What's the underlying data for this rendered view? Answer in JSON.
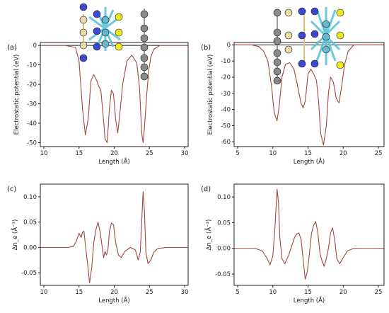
{
  "chart_data": [
    {
      "panel": "(a)",
      "type": "line",
      "xlabel": "Length (Å)",
      "ylabel": "Electrostatic potential (eV)",
      "xlim": [
        9.5,
        30.5
      ],
      "ylim": [
        -52,
        1.5
      ],
      "xticks": [
        10,
        15,
        20,
        25,
        30
      ],
      "yticks": [
        0,
        -10,
        -20,
        -30,
        -40,
        -50
      ],
      "reference_line": 0,
      "series": [
        {
          "x": [
            9.5,
            13.0,
            14.5,
            15.0,
            15.5,
            15.9,
            16.3,
            16.7,
            17.1,
            17.5,
            17.8,
            18.1,
            18.4,
            18.7,
            19.0,
            19.3,
            19.6,
            19.9,
            20.2,
            20.5,
            20.8,
            21.2,
            21.8,
            22.5,
            23.2,
            23.6,
            23.9,
            24.1,
            24.3,
            24.6,
            24.9,
            25.2,
            25.6,
            26.5,
            29.0,
            30.5
          ],
          "y": [
            0,
            0,
            -1,
            -8,
            -33,
            -46,
            -38,
            -18,
            -15,
            -18,
            -21,
            -23,
            -35,
            -48,
            -50,
            -33,
            -23,
            -25,
            -38,
            -45,
            -35,
            -20,
            -8,
            -5,
            -9,
            -22,
            -45,
            -50,
            -42,
            -26,
            -13,
            -6,
            -2,
            0,
            0,
            0
          ]
        }
      ],
      "line_color": "#a0473f",
      "grid": false
    },
    {
      "panel": "(b)",
      "type": "line",
      "xlabel": "Length (Å)",
      "ylabel": "Electrostatic potential (eV)",
      "xlim": [
        4.5,
        25.8
      ],
      "ylim": [
        -63,
        1.5
      ],
      "xticks": [
        5,
        10,
        15,
        20,
        25
      ],
      "yticks": [
        0,
        -10,
        -20,
        -30,
        -40,
        -50,
        -60
      ],
      "reference_line": 0,
      "series": [
        {
          "x": [
            4.5,
            7.0,
            8.0,
            8.7,
            9.3,
            9.8,
            10.2,
            10.6,
            10.9,
            11.3,
            11.8,
            12.4,
            13.0,
            13.5,
            14.0,
            14.3,
            14.6,
            15.0,
            15.4,
            15.8,
            16.2,
            16.5,
            16.8,
            17.2,
            17.6,
            17.9,
            18.2,
            18.6,
            19.0,
            19.4,
            19.8,
            20.2,
            20.7,
            21.5,
            23.5,
            25.8
          ],
          "y": [
            0,
            0,
            -1,
            -4,
            -10,
            -25,
            -42,
            -47,
            -38,
            -20,
            -12,
            -11,
            -15,
            -25,
            -36,
            -39,
            -35,
            -18,
            -15,
            -18,
            -22,
            -35,
            -55,
            -62,
            -50,
            -30,
            -20,
            -23,
            -33,
            -36,
            -25,
            -12,
            -4,
            0,
            0,
            0
          ]
        }
      ],
      "line_color": "#a0473f",
      "grid": false
    },
    {
      "panel": "(c)",
      "type": "line",
      "xlabel": "Length (Å)",
      "ylabel": "Δn_e (Å⁻³)",
      "xlim": [
        9.5,
        30.5
      ],
      "ylim": [
        -0.075,
        0.125
      ],
      "xticks": [
        10,
        15,
        20,
        25,
        30
      ],
      "yticks": [
        0.1,
        0.05,
        0.0,
        -0.05
      ],
      "series": [
        {
          "x": [
            9.5,
            13.5,
            14.2,
            14.6,
            15.0,
            15.3,
            15.5,
            15.7,
            15.9,
            16.2,
            16.5,
            16.8,
            17.1,
            17.4,
            17.7,
            18.0,
            18.3,
            18.5,
            18.7,
            18.9,
            19.1,
            19.3,
            19.6,
            19.9,
            20.2,
            20.6,
            21.0,
            21.5,
            22.3,
            23.0,
            23.4,
            23.7,
            23.9,
            24.1,
            24.3,
            24.5,
            24.8,
            25.2,
            25.6,
            26.2,
            27.5,
            30.5
          ],
          "y": [
            0,
            0,
            0.002,
            0.012,
            0.028,
            0.02,
            0.03,
            0.032,
            0.005,
            -0.03,
            -0.07,
            -0.04,
            0.01,
            0.035,
            0.05,
            0.03,
            0,
            -0.02,
            -0.008,
            -0.015,
            -0.005,
            0.03,
            0.048,
            0.045,
            0.01,
            -0.015,
            -0.02,
            -0.008,
            0,
            -0.005,
            -0.025,
            -0.01,
            0.05,
            0.11,
            0.07,
            -0.01,
            -0.032,
            -0.025,
            -0.01,
            -0.002,
            0,
            0
          ]
        }
      ],
      "line_color": "#a0473f",
      "grid": false
    },
    {
      "panel": "(d)",
      "type": "line",
      "xlabel": "Length (Å)",
      "ylabel": "Δn_e (Å⁻³)",
      "xlim": [
        4.5,
        25.8
      ],
      "ylim": [
        -0.072,
        0.125
      ],
      "xticks": [
        5,
        10,
        15,
        20,
        25
      ],
      "yticks": [
        0.1,
        0.05,
        0.0,
        -0.05
      ],
      "series": [
        {
          "x": [
            4.5,
            7.5,
            8.5,
            9.2,
            9.6,
            10.0,
            10.3,
            10.6,
            10.8,
            11.0,
            11.3,
            11.7,
            12.2,
            12.7,
            13.1,
            13.4,
            13.7,
            14.0,
            14.3,
            14.6,
            14.9,
            15.2,
            15.5,
            15.8,
            16.1,
            16.4,
            16.7,
            17.0,
            17.3,
            17.6,
            17.9,
            18.2,
            18.5,
            18.8,
            19.1,
            19.5,
            20.0,
            20.6,
            21.5,
            23.5,
            25.8
          ],
          "y": [
            0,
            0,
            -0.005,
            -0.02,
            -0.032,
            -0.015,
            0.04,
            0.115,
            0.09,
            0.02,
            -0.02,
            -0.03,
            -0.015,
            0.005,
            0.022,
            0.028,
            0.03,
            0.018,
            -0.02,
            -0.06,
            -0.045,
            -0.01,
            0.03,
            0.045,
            0.052,
            0.03,
            -0.01,
            -0.025,
            -0.035,
            -0.02,
            0,
            0.03,
            0.04,
            0.015,
            -0.02,
            -0.03,
            -0.018,
            -0.005,
            0,
            0,
            0
          ]
        }
      ],
      "line_color": "#a0473f",
      "grid": false
    }
  ]
}
